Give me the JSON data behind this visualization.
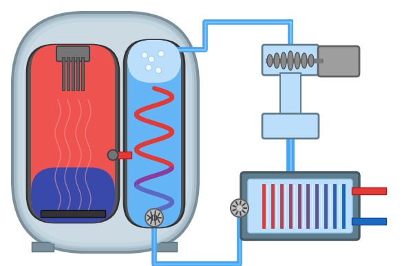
{
  "bg_color": "#ffffff",
  "outer_shell_color": "#b0bec5",
  "outer_shell_border": "#78909c",
  "reactor_fill": "#ef5350",
  "reactor_border": "#616161",
  "reactor_blue": "#3949ab",
  "steam_gen_fill": "#64b5f6",
  "steam_gen_border": "#616161",
  "pipe_red": "#e53935",
  "pipe_blue": "#42a5f5",
  "pipe_dark_blue": "#1a6bbf",
  "turbine_fill": "#bbdefb",
  "turbine_border": "#607d8b",
  "rotor_fill": "#9e9e9e",
  "generator_fill": "#9e9e9e",
  "generator_border": "#616161",
  "condenser_fill": "#bbdefb",
  "condenser_border": "#607d8b",
  "pump_fill": "#bdbdbd",
  "pump_border": "#616161",
  "rod_color": "#757575"
}
